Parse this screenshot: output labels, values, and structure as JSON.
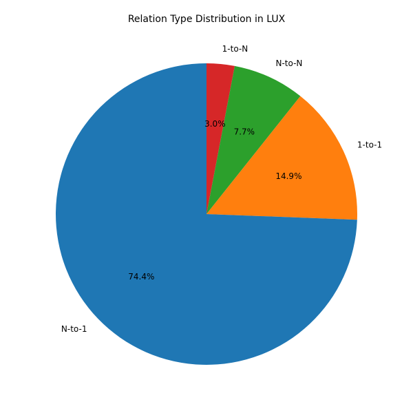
{
  "chart_data": {
    "type": "pie",
    "title": "Relation Type Distribution in LUX",
    "start_angle_deg": 90,
    "direction": "clockwise",
    "slices": [
      {
        "label": "1-to-N",
        "value": 3.0,
        "pct_label": "3.0%",
        "color": "#d62728"
      },
      {
        "label": "N-to-N",
        "value": 7.7,
        "pct_label": "7.7%",
        "color": "#2ca02c"
      },
      {
        "label": "1-to-1",
        "value": 14.9,
        "pct_label": "14.9%",
        "color": "#ff7f0e"
      },
      {
        "label": "N-to-1",
        "value": 74.4,
        "pct_label": "74.4%",
        "color": "#1f77b4"
      }
    ]
  }
}
